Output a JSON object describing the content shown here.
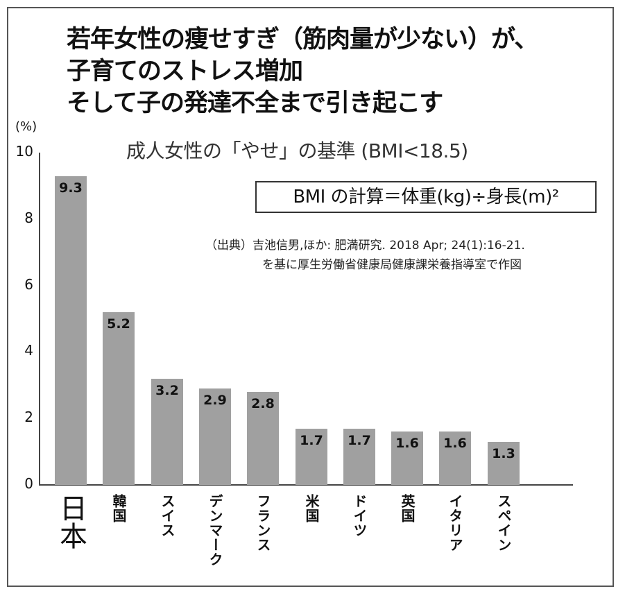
{
  "headline": {
    "lines": [
      "若年女性の痩せすぎ（筋肉量が少ない）が、",
      "子育てのストレス増加",
      "そして子の発達不全まで引き起こす"
    ]
  },
  "subtitle": "成人女性の「やせ」の基準 (BMI<18.5)",
  "formula": "BMI の計算＝体重(kg)÷身長(m)²",
  "source": {
    "line1": "（出典）吉池信男,ほか: 肥満研究. 2018 Apr; 24(1):16-21.",
    "line2": "を基に厚生労働省健康局健康課栄養指導室で作図"
  },
  "colors": {
    "bar": "#a0a0a0",
    "axis": "#444444",
    "frame": "#555555"
  },
  "chart_data": {
    "type": "bar",
    "title": "成人女性の「やせ」の基準 (BMI<18.5)",
    "xlabel": "",
    "ylabel": "(%)",
    "ylim": [
      0,
      10
    ],
    "yticks": [
      "0",
      "2",
      "4",
      "6",
      "8",
      "10"
    ],
    "grid": false,
    "legend": null,
    "categories": [
      "日本",
      "韓国",
      "スイス",
      "デンマーク",
      "フランス",
      "米国",
      "ドイツ",
      "英国",
      "イタリア",
      "スペイン"
    ],
    "values": [
      9.3,
      5.2,
      3.2,
      2.9,
      2.8,
      1.7,
      1.7,
      1.6,
      1.6,
      1.3
    ],
    "value_labels": [
      "9.3",
      "5.2",
      "3.2",
      "2.9",
      "2.8",
      "1.7",
      "1.7",
      "1.6",
      "1.6",
      "1.3"
    ]
  }
}
